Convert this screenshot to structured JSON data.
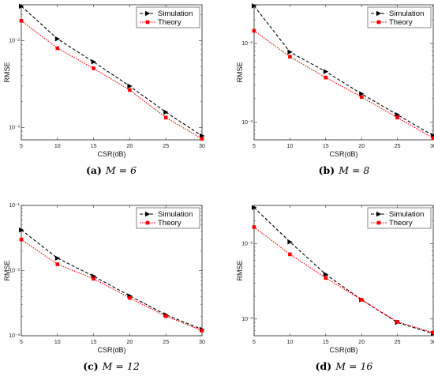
{
  "chart_data": [
    {
      "type": "line",
      "caption_letter": "(a)",
      "caption_math": "M = 6",
      "xlabel": "CSR(dB)",
      "ylabel": "RMSE",
      "x": [
        5,
        10,
        15,
        20,
        25,
        30
      ],
      "xticks": [
        "5",
        "10",
        "15",
        "20",
        "25",
        "30"
      ],
      "y_scale": "log",
      "ylim": [
        0.00072,
        0.026
      ],
      "yticks": [
        {
          "value": 0.01,
          "label": "10⁻²"
        },
        {
          "value": 0.001,
          "label": "10⁻³"
        }
      ],
      "legend_position": "top-right",
      "grid": false,
      "series": [
        {
          "name": "Simulation",
          "color": "#000000",
          "marker": "triangle-right",
          "dash": "dashed",
          "values": [
            0.025,
            0.0105,
            0.0057,
            0.003,
            0.0015,
            0.0008
          ]
        },
        {
          "name": "Theory",
          "color": "#ff0000",
          "marker": "square",
          "dash": "dotted",
          "values": [
            0.017,
            0.0082,
            0.0048,
            0.0027,
            0.0013,
            0.00074
          ]
        }
      ]
    },
    {
      "type": "line",
      "caption_letter": "(b)",
      "caption_math": "M = 8",
      "xlabel": "CSR(dB)",
      "ylabel": "RMSE",
      "x": [
        5,
        10,
        15,
        20,
        25,
        30
      ],
      "xticks": [
        "5",
        "10",
        "15",
        "20",
        "25",
        "30"
      ],
      "y_scale": "log",
      "ylim": [
        0.0006,
        0.031
      ],
      "yticks": [
        {
          "value": 0.01,
          "label": "10⁻²"
        },
        {
          "value": 0.001,
          "label": "10⁻³"
        }
      ],
      "legend_position": "top-right",
      "grid": false,
      "series": [
        {
          "name": "Simulation",
          "color": "#000000",
          "marker": "triangle-right",
          "dash": "dashed",
          "values": [
            0.03,
            0.0078,
            0.0044,
            0.0023,
            0.00125,
            0.00068
          ]
        },
        {
          "name": "Theory",
          "color": "#ff0000",
          "marker": "square",
          "dash": "dotted",
          "values": [
            0.0145,
            0.0068,
            0.0037,
            0.0021,
            0.00115,
            0.00063
          ]
        }
      ]
    },
    {
      "type": "line",
      "caption_letter": "(c)",
      "caption_math": "M = 12",
      "xlabel": "CSR(dB)",
      "ylabel": "RMSE",
      "x": [
        5,
        10,
        15,
        20,
        25,
        30
      ],
      "xticks": [
        "5",
        "10",
        "15",
        "20",
        "25",
        "30"
      ],
      "y_scale": "log",
      "ylim": [
        0.001,
        0.1
      ],
      "yticks": [
        {
          "value": 0.1,
          "label": "10⁻¹"
        },
        {
          "value": 0.01,
          "label": "10⁻²"
        },
        {
          "value": 0.001,
          "label": "10⁻³"
        }
      ],
      "legend_position": "top-right",
      "grid": false,
      "series": [
        {
          "name": "Simulation",
          "color": "#000000",
          "marker": "triangle-right",
          "dash": "dashed",
          "values": [
            0.042,
            0.0155,
            0.0082,
            0.0041,
            0.0021,
            0.00125
          ]
        },
        {
          "name": "Theory",
          "color": "#ff0000",
          "marker": "square",
          "dash": "dotted",
          "values": [
            0.03,
            0.0125,
            0.0075,
            0.0038,
            0.002,
            0.0012
          ]
        }
      ]
    },
    {
      "type": "line",
      "caption_letter": "(d)",
      "caption_math": "M = 16",
      "xlabel": "CSR(dB)",
      "ylabel": "RMSE",
      "x": [
        5,
        10,
        15,
        20,
        25,
        30
      ],
      "xticks": [
        "5",
        "10",
        "15",
        "20",
        "25",
        "30"
      ],
      "y_scale": "log",
      "ylim": [
        0.0006,
        0.032
      ],
      "yticks": [
        {
          "value": 0.01,
          "label": "10⁻²"
        },
        {
          "value": 0.001,
          "label": "10⁻³"
        }
      ],
      "legend_position": "top-right",
      "grid": false,
      "series": [
        {
          "name": "Simulation",
          "color": "#000000",
          "marker": "triangle-right",
          "dash": "dashed",
          "values": [
            0.03,
            0.0105,
            0.0039,
            0.0018,
            0.0009,
            0.00064
          ]
        },
        {
          "name": "Theory",
          "color": "#ff0000",
          "marker": "square",
          "dash": "dotted",
          "values": [
            0.0165,
            0.0072,
            0.0035,
            0.0018,
            0.00092,
            0.00066
          ]
        }
      ]
    }
  ]
}
